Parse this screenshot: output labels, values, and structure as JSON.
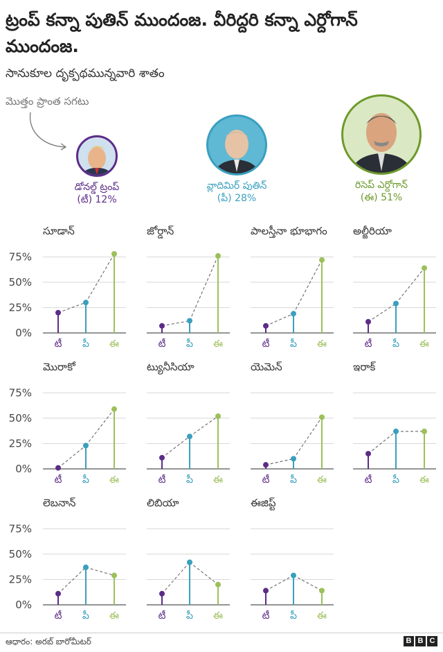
{
  "header": {
    "title": "ట్రంప్ కన్నా పుతిన్ ముందంజ. వీరిద్దరి కన్నా ఎర్దోగాన్ ముందంజ.",
    "subtitle": "సానుకూల దృక్పథమున్నవారి శాతం",
    "note": "మొత్తం ప్రాంత సగటు"
  },
  "leaders": [
    {
      "name": "డోనల్డ్ ట్రంప్",
      "value_label": "(టీ) 12%",
      "color": "#5c2c87",
      "bg": "#5c2c87",
      "face": "trump-portrait"
    },
    {
      "name": "వ్లాదిమిర్ పుతిన్",
      "value_label": "(పీ) 28%",
      "color": "#3a9fbf",
      "bg": "#3a9fbf",
      "face": "putin-portrait"
    },
    {
      "name": "రిసెప్ ఎర్దోగాన్",
      "value_label": "(ఈ) 51%",
      "color": "#6d9a2b",
      "bg": "#8fb843",
      "face": "erdogan-portrait"
    }
  ],
  "colors": {
    "trump": "#5c2c87",
    "putin": "#3a9fbf",
    "erdogan": "#9cc05a",
    "connector": "#666666",
    "grid": "#d8d8d8"
  },
  "chart_data": {
    "type": "lollipop",
    "ylim": [
      0,
      80
    ],
    "yticks": [
      "0%",
      "25%",
      "50%",
      "75%"
    ],
    "categories": [
      "టీ",
      "పీ",
      "ఈ"
    ],
    "series_names": [
      "టీ",
      "పీ",
      "ఈ"
    ],
    "panels": [
      {
        "country": "సూడాన్",
        "values": [
          20,
          30,
          78
        ]
      },
      {
        "country": "జోర్డాన్",
        "values": [
          7,
          12,
          76
        ]
      },
      {
        "country": "పాలస్తీనా భూభాగం",
        "values": [
          7,
          19,
          72
        ]
      },
      {
        "country": "అల్జీరియా",
        "values": [
          11,
          29,
          64
        ]
      },
      {
        "country": "మొరాకో",
        "values": [
          1,
          23,
          59
        ]
      },
      {
        "country": "ట్యునీసియా",
        "values": [
          11,
          32,
          52
        ]
      },
      {
        "country": "యెమెన్",
        "values": [
          4,
          10,
          51
        ]
      },
      {
        "country": "ఇరాక్",
        "values": [
          15,
          37,
          37
        ]
      },
      {
        "country": "లెబనాన్",
        "values": [
          11,
          37,
          29
        ]
      },
      {
        "country": "లిబియా",
        "values": [
          11,
          42,
          20
        ]
      },
      {
        "country": "ఈజిప్ట్",
        "values": [
          14,
          29,
          14
        ]
      }
    ]
  },
  "footer": {
    "source": "ఆధారం: అరబ్ బారోమీటర్",
    "logo": [
      "B",
      "B",
      "C"
    ]
  }
}
